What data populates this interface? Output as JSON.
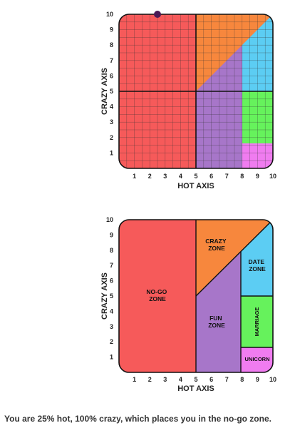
{
  "charts": {
    "grid_chart": {
      "xlabel": "HOT AXIS",
      "ylabel": "CRAZY AXIS",
      "x_ticks": [
        "1",
        "2",
        "3",
        "4",
        "5",
        "6",
        "7",
        "8",
        "9",
        "10"
      ],
      "y_ticks": [
        "1",
        "2",
        "3",
        "4",
        "5",
        "6",
        "7",
        "8",
        "9",
        "10"
      ]
    },
    "zone_chart": {
      "xlabel": "HOT AXIS",
      "ylabel": "CRAZY AXIS",
      "x_ticks": [
        "1",
        "2",
        "3",
        "4",
        "5",
        "6",
        "7",
        "8",
        "9",
        "10"
      ],
      "y_ticks": [
        "1",
        "2",
        "3",
        "4",
        "5",
        "6",
        "7",
        "8",
        "9",
        "10"
      ],
      "zones": {
        "nogo": [
          "NO-GO",
          "ZONE"
        ],
        "crazy": [
          "CRAZY",
          "ZONE"
        ],
        "date": [
          "DATE",
          "ZONE"
        ],
        "fun": [
          "FUN",
          "ZONE"
        ],
        "marriage": "MARRIAGE",
        "unicorn": "UNICORN"
      }
    }
  },
  "chart_data": [
    {
      "type": "scatter",
      "xlabel": "HOT AXIS",
      "ylabel": "CRAZY AXIS",
      "xlim": [
        0,
        10
      ],
      "ylim": [
        0,
        10
      ],
      "grid": true,
      "points": [
        {
          "x": 2.5,
          "y": 10
        }
      ],
      "regions": [
        {
          "name": "no-go",
          "color": "#f65a5a"
        },
        {
          "name": "crazy",
          "color": "#f7873d"
        },
        {
          "name": "fun",
          "color": "#a776c9"
        },
        {
          "name": "date",
          "color": "#5ccdf3"
        },
        {
          "name": "marriage",
          "color": "#66f25c"
        },
        {
          "name": "unicorn",
          "color": "#f07cf0"
        }
      ],
      "marker_color": "#4a1a56"
    },
    {
      "type": "area",
      "xlabel": "HOT AXIS",
      "ylabel": "CRAZY AXIS",
      "xlim": [
        0,
        10
      ],
      "ylim": [
        0,
        10
      ],
      "grid": false,
      "zones": [
        "NO-GO ZONE",
        "CRAZY ZONE",
        "FUN ZONE",
        "DATE ZONE",
        "MARRIAGE",
        "UNICORN"
      ]
    }
  ],
  "result_text": "You are 25% hot, 100% crazy, which places you in the no-go zone."
}
